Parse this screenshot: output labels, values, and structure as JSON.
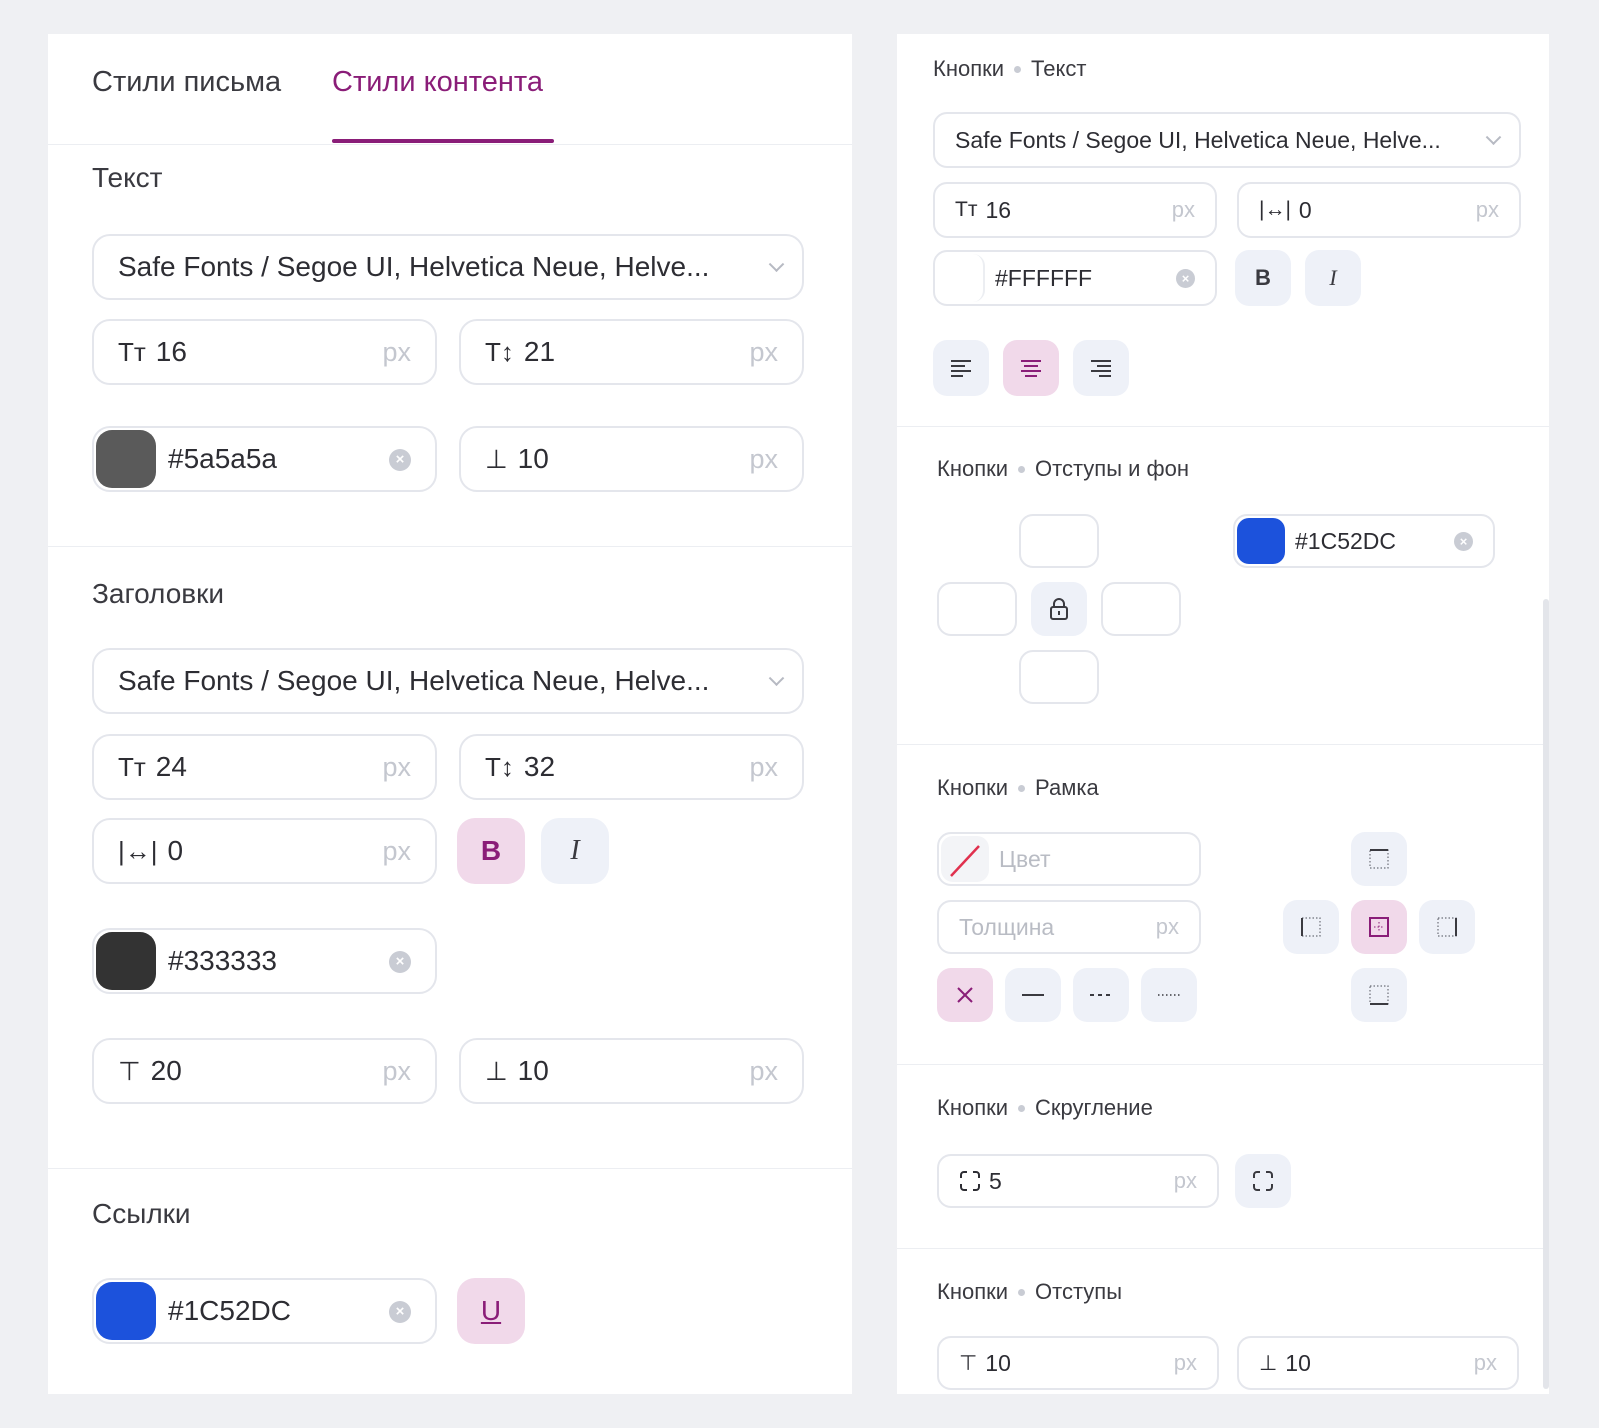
{
  "tabs": {
    "letter_styles": "Стили письма",
    "content_styles": "Стили контента"
  },
  "text": {
    "title": "Текст",
    "font": "Safe Fonts / Segoe UI, Helvetica Neue, Helve...",
    "font_size": "16",
    "line_height": "21",
    "color_hex": "#5a5a5a",
    "color": "#5a5a5a",
    "margin_bottom": "10",
    "unit": "px"
  },
  "headings": {
    "title": "Заголовки",
    "font": "Safe Fonts / Segoe UI, Helvetica Neue, Helve...",
    "font_size": "24",
    "line_height": "32",
    "letter_spacing": "0",
    "bold_label": "B",
    "italic_label": "I",
    "color_hex": "#333333",
    "color": "#333333",
    "margin_top": "20",
    "margin_bottom": "10",
    "unit": "px"
  },
  "links": {
    "title": "Ссылки",
    "color_hex": "#1C52DC",
    "color": "#1C52DC",
    "underline_label": "U"
  },
  "buttons_text": {
    "crumb_parent": "Кнопки",
    "crumb_child": "Текст",
    "font": "Safe Fonts / Segoe UI, Helvetica Neue, Helve...",
    "font_size": "16",
    "letter_spacing": "0",
    "color_hex": "#FFFFFF",
    "color": "#FFFFFF",
    "bold_label": "B",
    "italic_label": "I",
    "unit": "px",
    "align_active": "center"
  },
  "buttons_padding_bg": {
    "crumb_parent": "Кнопки",
    "crumb_child": "Отступы и фон",
    "bg_color_hex": "#1C52DC",
    "bg_color": "#1C52DC"
  },
  "buttons_border": {
    "crumb_parent": "Кнопки",
    "crumb_child": "Рамка",
    "color_placeholder": "Цвет",
    "width_placeholder": "Толщина",
    "unit": "px",
    "active_style": "none",
    "active_side": "all"
  },
  "buttons_radius": {
    "crumb_parent": "Кнопки",
    "crumb_child": "Скругление",
    "radius": "5",
    "unit": "px"
  },
  "buttons_margins": {
    "crumb_parent": "Кнопки",
    "crumb_child": "Отступы",
    "margin_top": "10",
    "margin_bottom": "10",
    "unit": "px"
  },
  "accent": "#8a1d78"
}
